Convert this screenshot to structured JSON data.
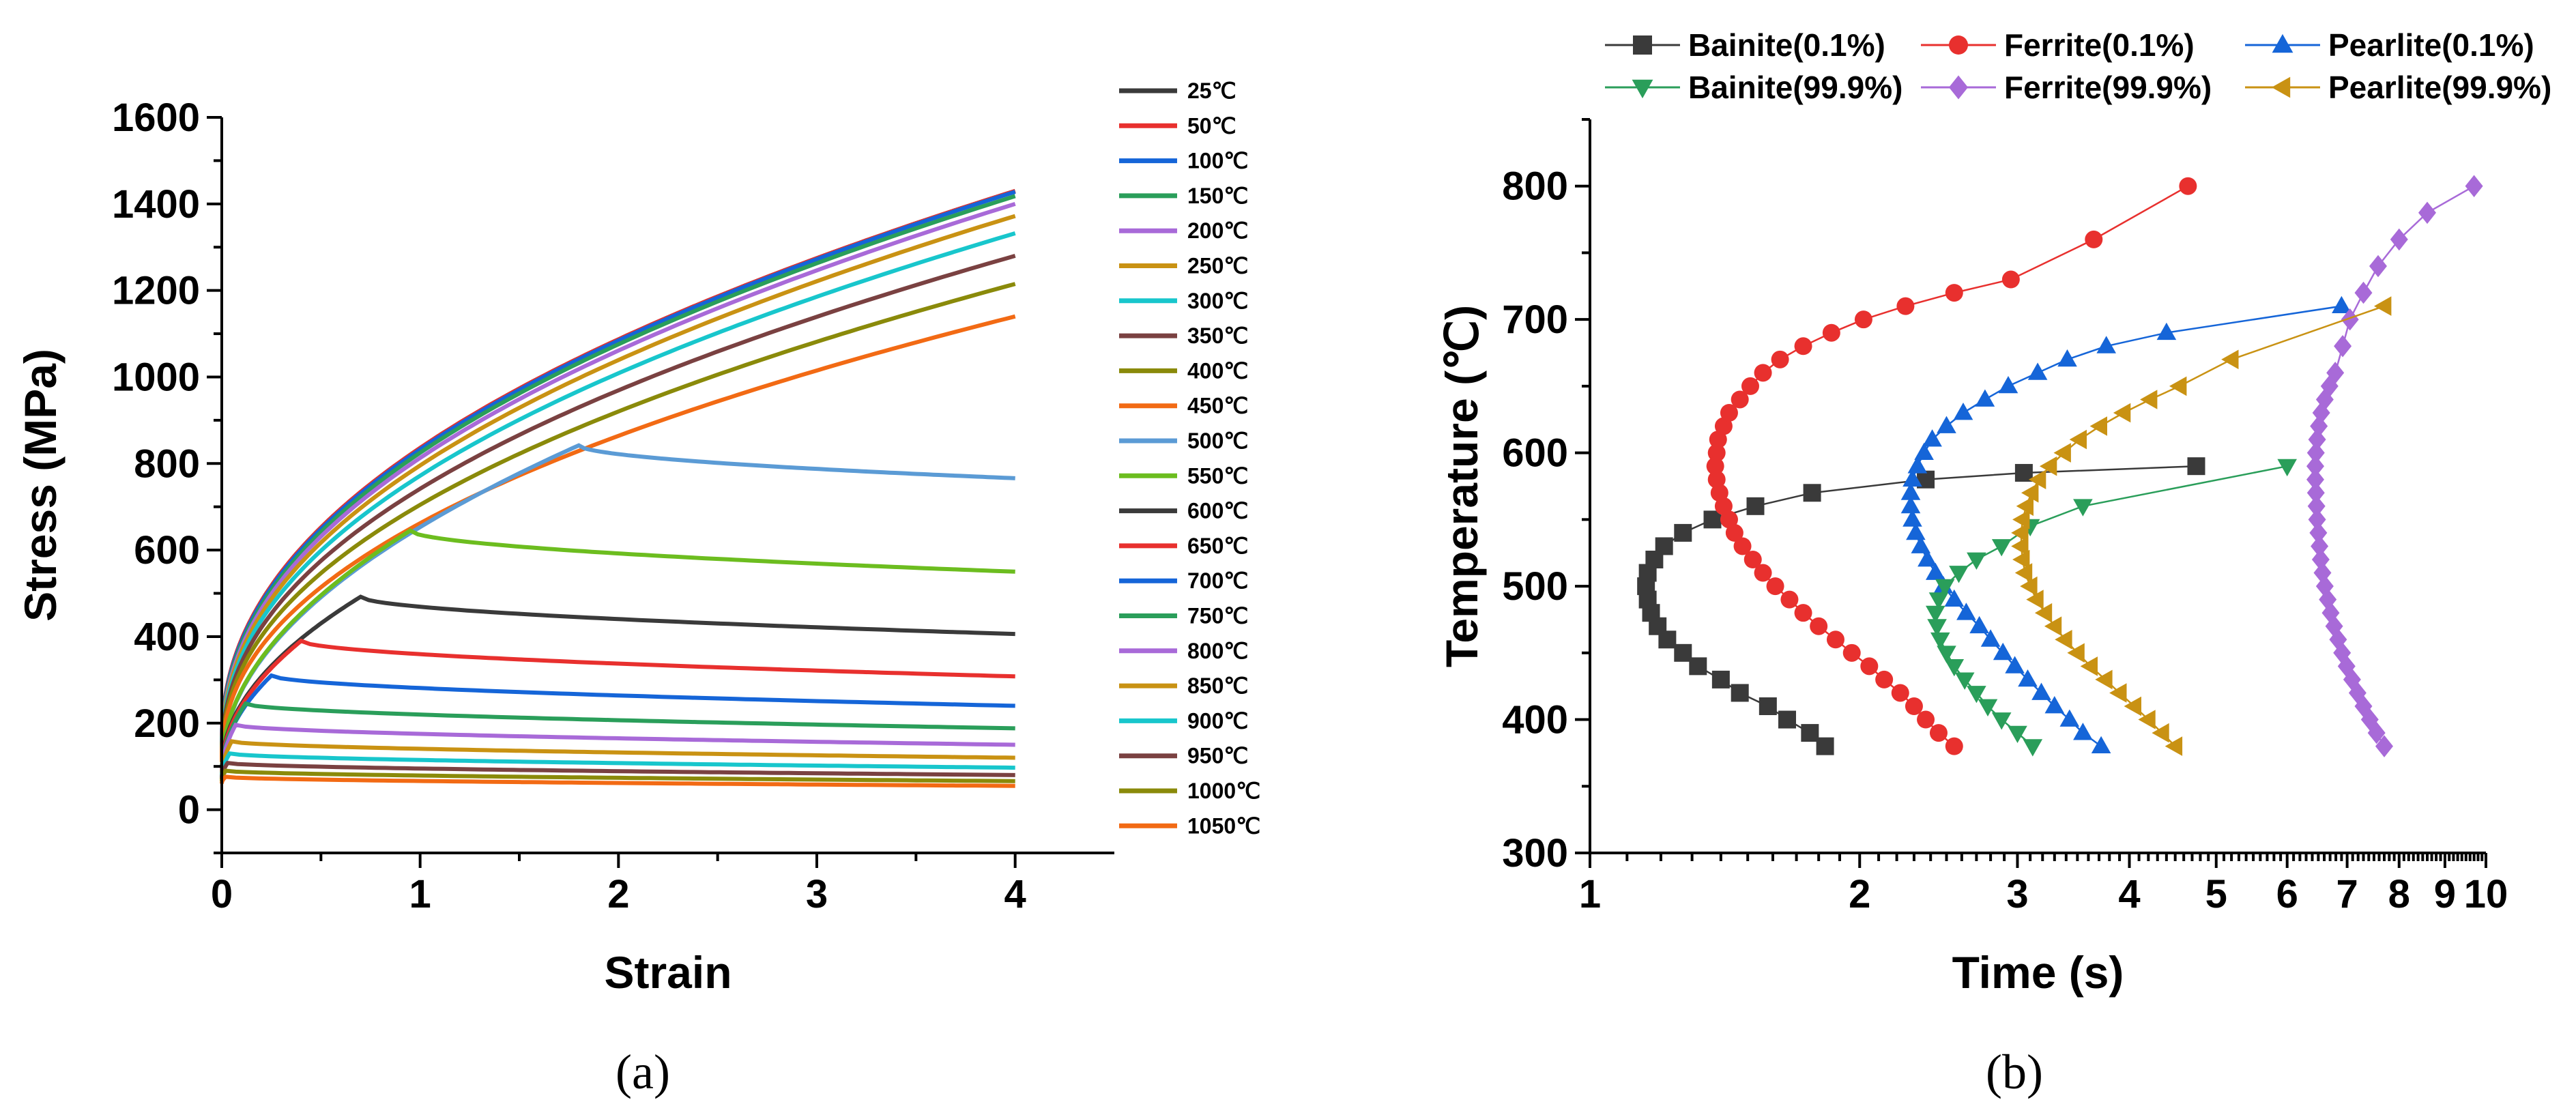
{
  "chart_data": [
    {
      "type": "line",
      "panel_label": "(a)",
      "xlabel": "Strain",
      "ylabel": "Stress (MPa)",
      "xlim": [
        0,
        4.5
      ],
      "ylim": [
        -100,
        1600
      ],
      "xticks": [
        0,
        1,
        2,
        3,
        4
      ],
      "yticks": [
        0,
        200,
        400,
        600,
        800,
        1000,
        1200,
        1400,
        1600
      ],
      "legend_position": "right",
      "series": [
        {
          "name": "25℃",
          "color": "#3a3a3a",
          "kind": "harden",
          "y0": 150,
          "yend": 1430
        },
        {
          "name": "50℃",
          "color": "#e8302e",
          "kind": "harden",
          "y0": 150,
          "yend": 1430
        },
        {
          "name": "100℃",
          "color": "#1565d8",
          "kind": "harden",
          "y0": 145,
          "yend": 1428
        },
        {
          "name": "150℃",
          "color": "#2a9e5a",
          "kind": "harden",
          "y0": 140,
          "yend": 1418
        },
        {
          "name": "200℃",
          "color": "#a86ad8",
          "kind": "harden",
          "y0": 135,
          "yend": 1400
        },
        {
          "name": "250℃",
          "color": "#c99213",
          "kind": "harden",
          "y0": 130,
          "yend": 1372
        },
        {
          "name": "300℃",
          "color": "#18c6cc",
          "kind": "harden",
          "y0": 125,
          "yend": 1332
        },
        {
          "name": "350℃",
          "color": "#7a4141",
          "kind": "harden",
          "y0": 120,
          "yend": 1280
        },
        {
          "name": "400℃",
          "color": "#8a8a0a",
          "kind": "harden",
          "y0": 115,
          "yend": 1215
        },
        {
          "name": "450℃",
          "color": "#f26a14",
          "kind": "harden",
          "y0": 110,
          "yend": 1140
        },
        {
          "name": "500℃",
          "color": "#5b9bd5",
          "kind": "peak",
          "y0": 100,
          "xpeak": 1.8,
          "ypeak": 842,
          "yend": 766
        },
        {
          "name": "550℃",
          "color": "#6cbd1f",
          "kind": "peak",
          "y0": 100,
          "xpeak": 0.95,
          "ypeak": 645,
          "yend": 550
        },
        {
          "name": "600℃",
          "color": "#3a3a3a",
          "kind": "peak",
          "y0": 95,
          "xpeak": 0.7,
          "ypeak": 492,
          "yend": 406
        },
        {
          "name": "650℃",
          "color": "#e8302e",
          "kind": "peak",
          "y0": 90,
          "xpeak": 0.4,
          "ypeak": 390,
          "yend": 308
        },
        {
          "name": "700℃",
          "color": "#1565d8",
          "kind": "peak",
          "y0": 85,
          "xpeak": 0.25,
          "ypeak": 310,
          "yend": 240
        },
        {
          "name": "750℃",
          "color": "#2a9e5a",
          "kind": "peak",
          "y0": 80,
          "xpeak": 0.12,
          "ypeak": 245,
          "yend": 188
        },
        {
          "name": "800℃",
          "color": "#a86ad8",
          "kind": "peak",
          "y0": 78,
          "xpeak": 0.07,
          "ypeak": 196,
          "yend": 150
        },
        {
          "name": "850℃",
          "color": "#c99213",
          "kind": "peak",
          "y0": 75,
          "xpeak": 0.05,
          "ypeak": 158,
          "yend": 120
        },
        {
          "name": "900℃",
          "color": "#18c6cc",
          "kind": "peak",
          "y0": 72,
          "xpeak": 0.04,
          "ypeak": 130,
          "yend": 97
        },
        {
          "name": "950℃",
          "color": "#7a4141",
          "kind": "peak",
          "y0": 70,
          "xpeak": 0.03,
          "ypeak": 108,
          "yend": 80
        },
        {
          "name": "1000℃",
          "color": "#8a8a0a",
          "kind": "peak",
          "y0": 65,
          "xpeak": 0.02,
          "ypeak": 90,
          "yend": 66
        },
        {
          "name": "1050℃",
          "color": "#f26a14",
          "kind": "peak",
          "y0": 60,
          "xpeak": 0.02,
          "ypeak": 76,
          "yend": 55
        }
      ]
    },
    {
      "type": "line",
      "panel_label": "(b)",
      "xlabel": "Time (s)",
      "ylabel": "Temperature (℃)",
      "xscale": "log",
      "xlim": [
        1,
        10
      ],
      "ylim": [
        300,
        850
      ],
      "xtick_labels": [
        {
          "v": 1,
          "t": "1"
        },
        {
          "v": 2,
          "t": "2"
        },
        {
          "v": 3,
          "t": "3"
        },
        {
          "v": 4,
          "t": "4"
        },
        {
          "v": 5,
          "t": "5"
        },
        {
          "v": 6,
          "t": "6"
        },
        {
          "v": 7,
          "t": "7"
        },
        {
          "v": 8,
          "t": "8"
        },
        {
          "v": 9,
          "t": "9"
        },
        {
          "v": 10,
          "t": "10"
        }
      ],
      "yticks": [
        300,
        400,
        500,
        600,
        700,
        800
      ],
      "legend_position": "top",
      "series": [
        {
          "name": "Bainite(0.1%)",
          "color": "#3a3a3a",
          "marker": "square",
          "x": [
            1.83,
            1.76,
            1.66,
            1.58,
            1.47,
            1.4,
            1.32,
            1.27,
            1.22,
            1.19,
            1.17,
            1.16,
            1.155,
            1.16,
            1.18,
            1.21,
            1.27,
            1.37,
            1.53,
            1.77,
            2.37,
            3.05,
            4.75
          ],
          "y": [
            380,
            390,
            400,
            410,
            420,
            430,
            440,
            450,
            460,
            470,
            480,
            490,
            500,
            510,
            520,
            530,
            540,
            550,
            560,
            570,
            580,
            585,
            590
          ]
        },
        {
          "name": "Ferrite(0.1%)",
          "color": "#e8302e",
          "marker": "circle",
          "x": [
            2.55,
            2.45,
            2.37,
            2.3,
            2.22,
            2.13,
            2.05,
            1.96,
            1.88,
            1.8,
            1.73,
            1.67,
            1.61,
            1.56,
            1.52,
            1.48,
            1.45,
            1.43,
            1.41,
            1.395,
            1.385,
            1.38,
            1.385,
            1.39,
            1.41,
            1.43,
            1.47,
            1.51,
            1.56,
            1.63,
            1.73,
            1.86,
            2.02,
            2.25,
            2.55,
            2.95,
            3.65,
            4.65
          ],
          "y": [
            380,
            390,
            400,
            410,
            420,
            430,
            440,
            450,
            460,
            470,
            480,
            490,
            500,
            510,
            520,
            530,
            540,
            550,
            560,
            570,
            580,
            590,
            600,
            610,
            620,
            630,
            640,
            650,
            660,
            670,
            680,
            690,
            700,
            710,
            720,
            730,
            760,
            800
          ]
        },
        {
          "name": "Pearlite(0.1%)",
          "color": "#1565d8",
          "marker": "triangle-up",
          "x": [
            3.72,
            3.55,
            3.43,
            3.3,
            3.19,
            3.08,
            2.98,
            2.89,
            2.8,
            2.72,
            2.63,
            2.55,
            2.48,
            2.43,
            2.38,
            2.34,
            2.31,
            2.29,
            2.28,
            2.28,
            2.29,
            2.32,
            2.36,
            2.41,
            2.5,
            2.61,
            2.76,
            2.93,
            3.16,
            3.41,
            3.77,
            4.4,
            6.9
          ],
          "y": [
            380,
            390,
            400,
            410,
            420,
            430,
            440,
            450,
            460,
            470,
            480,
            490,
            500,
            510,
            520,
            530,
            540,
            550,
            560,
            570,
            580,
            590,
            600,
            610,
            620,
            630,
            640,
            650,
            660,
            670,
            680,
            690,
            710
          ]
        },
        {
          "name": "Bainite(99.9%)",
          "color": "#2a9e5a",
          "marker": "triangle-down",
          "x": [
            3.12,
            3.0,
            2.88,
            2.78,
            2.7,
            2.62,
            2.55,
            2.5,
            2.46,
            2.44,
            2.43,
            2.45,
            2.49,
            2.58,
            2.7,
            2.88,
            3.1,
            3.55,
            6.0
          ],
          "y": [
            380,
            390,
            400,
            410,
            420,
            430,
            440,
            450,
            460,
            470,
            480,
            490,
            500,
            510,
            520,
            530,
            545,
            560,
            590
          ]
        },
        {
          "name": "Ferrite(99.9%)",
          "color": "#a86ad8",
          "marker": "diamond",
          "x": [
            7.7,
            7.55,
            7.42,
            7.3,
            7.19,
            7.09,
            6.99,
            6.91,
            6.84,
            6.77,
            6.71,
            6.66,
            6.61,
            6.57,
            6.54,
            6.52,
            6.5,
            6.48,
            6.47,
            6.46,
            6.45,
            6.45,
            6.46,
            6.48,
            6.51,
            6.55,
            6.61,
            6.69,
            6.79,
            6.92,
            7.05,
            7.3,
            7.58,
            8.0,
            8.6,
            9.7
          ],
          "y": [
            380,
            390,
            400,
            410,
            420,
            430,
            440,
            450,
            460,
            470,
            480,
            490,
            500,
            510,
            520,
            530,
            540,
            550,
            560,
            570,
            580,
            590,
            600,
            610,
            620,
            630,
            640,
            650,
            660,
            680,
            700,
            720,
            740,
            760,
            780,
            800
          ]
        },
        {
          "name": "Pearlite(99.9%)",
          "color": "#c99213",
          "marker": "triangle-left",
          "x": [
            4.5,
            4.35,
            4.2,
            4.05,
            3.9,
            3.76,
            3.62,
            3.5,
            3.39,
            3.3,
            3.22,
            3.15,
            3.1,
            3.06,
            3.04,
            3.03,
            3.03,
            3.04,
            3.07,
            3.11,
            3.17,
            3.26,
            3.38,
            3.52,
            3.71,
            3.94,
            4.22,
            4.55,
            5.2,
            7.7
          ],
          "y": [
            380,
            390,
            400,
            410,
            420,
            430,
            440,
            450,
            460,
            470,
            480,
            490,
            500,
            510,
            520,
            530,
            540,
            550,
            560,
            570,
            580,
            590,
            600,
            610,
            620,
            630,
            640,
            650,
            670,
            710
          ]
        }
      ]
    }
  ]
}
